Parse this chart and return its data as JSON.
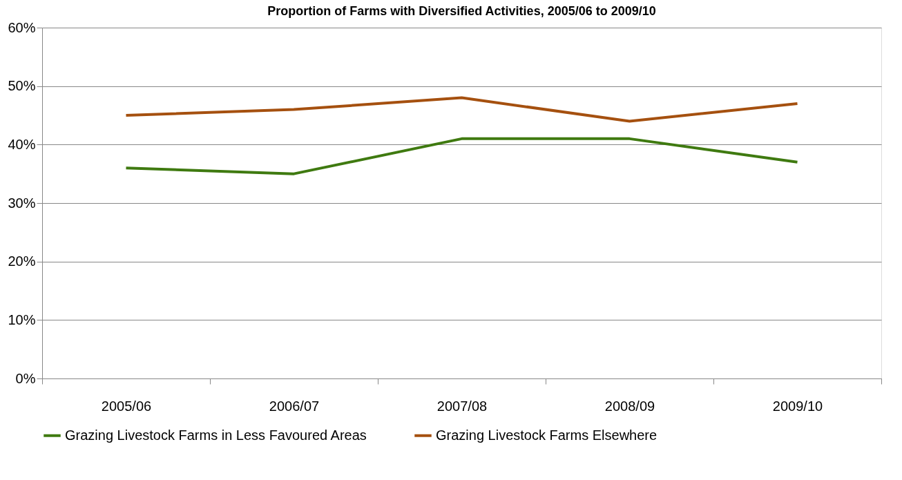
{
  "chart_data": {
    "type": "line",
    "title": "Proportion of Farms with Diversified Activities, 2005/06 to 2009/10",
    "categories": [
      "2005/06",
      "2006/07",
      "2007/08",
      "2008/09",
      "2009/10"
    ],
    "series": [
      {
        "name": "Grazing Livestock Farms in Less Favoured Areas",
        "color": "#3f7a10",
        "values": [
          36,
          35,
          41,
          41,
          37
        ]
      },
      {
        "name": "Grazing Livestock Farms Elsewhere",
        "color": "#a5500f",
        "values": [
          45,
          46,
          48,
          44,
          47
        ]
      }
    ],
    "ylim": [
      0,
      60
    ],
    "yticks": [
      {
        "value": 0,
        "label": "0%"
      },
      {
        "value": 10,
        "label": "10%"
      },
      {
        "value": 20,
        "label": "20%"
      },
      {
        "value": 30,
        "label": "30%"
      },
      {
        "value": 40,
        "label": "40%"
      },
      {
        "value": 50,
        "label": "50%"
      },
      {
        "value": 60,
        "label": "60%"
      }
    ],
    "grid": "y",
    "legend": "bottom",
    "marker": "none",
    "line_style": "solid"
  }
}
